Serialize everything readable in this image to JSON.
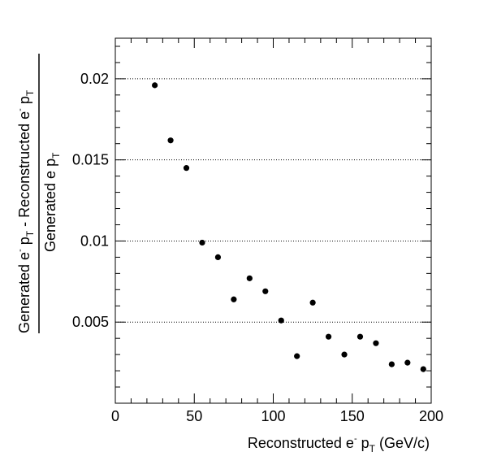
{
  "chart_data": {
    "type": "scatter",
    "title": "",
    "xlabel": "Reconstructed e- pT (GeV/c)",
    "ylabel": "Generated e- pT - Reconstructed e- pT / Generated e pT",
    "xlabel_parts": {
      "base": "Reconstructed e",
      "sup": "-",
      "mid": " p",
      "sub": "T",
      "tail": " (GeV/c)"
    },
    "ylabel_parts": {
      "numerator": {
        "a": "Generated e",
        "a_sup": "-",
        "b": " p",
        "b_sub": "T",
        "c": " - Reconstructed e",
        "c_sup": "-",
        "d": " p",
        "d_sub": "T"
      },
      "denominator": {
        "a": "Generated e p",
        "a_sub": "T"
      }
    },
    "xlim": [
      0,
      200
    ],
    "ylim": [
      0,
      0.0225
    ],
    "x_ticks": [
      "0",
      "50",
      "100",
      "150",
      "200"
    ],
    "y_ticks": [
      "0.005",
      "0.01",
      "0.015",
      "0.02"
    ],
    "grid": "horizontal dotted at major y ticks",
    "marker_color": "#000000",
    "series": [
      {
        "x": [
          25,
          35,
          45,
          55,
          65,
          75,
          85,
          95,
          105,
          115,
          125,
          135,
          145,
          155,
          165,
          175,
          185,
          195
        ],
        "y": [
          0.0196,
          0.0162,
          0.0145,
          0.0099,
          0.009,
          0.0064,
          0.0077,
          0.0069,
          0.0051,
          0.0029,
          0.0062,
          0.0041,
          0.003,
          0.0041,
          0.0037,
          0.0024,
          0.0025,
          0.0021
        ]
      }
    ]
  }
}
